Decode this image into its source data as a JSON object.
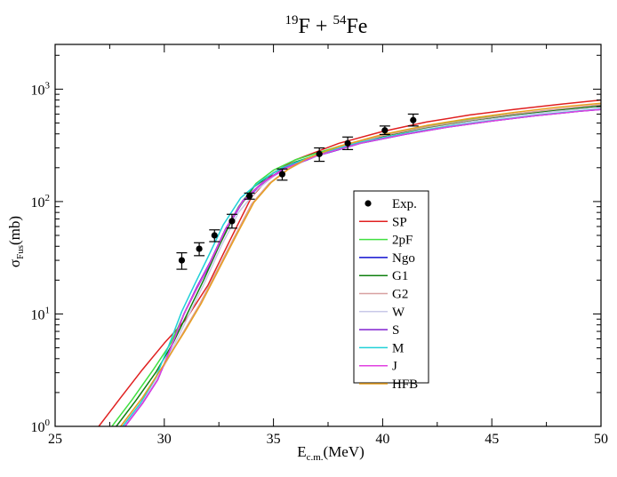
{
  "chart_data": {
    "type": "line",
    "title": {
      "m1": "19",
      "e1": "F + ",
      "m2": "54",
      "e2": "Fe"
    },
    "xlabel": {
      "main": "E",
      "sub": "c.m.",
      "unit": "(MeV)"
    },
    "ylabel": {
      "main": "σ",
      "sub": "Fus",
      "unit": "(mb)"
    },
    "xlim": [
      25,
      50
    ],
    "ylim": [
      1,
      2500
    ],
    "yscale": "log",
    "grid": false,
    "legend_position": "center-right",
    "x_ticks": [
      25,
      30,
      35,
      40,
      45,
      50
    ],
    "x_tick_labels": [
      "25",
      "30",
      "35",
      "40",
      "45",
      "50"
    ],
    "y_ticks": [
      1,
      10,
      100,
      1000
    ],
    "y_tick_labels": [
      {
        "base": "10",
        "exp": "0"
      },
      {
        "base": "10",
        "exp": "1"
      },
      {
        "base": "10",
        "exp": "2"
      },
      {
        "base": "10",
        "exp": "3"
      }
    ],
    "experiment": {
      "name": "Exp.",
      "x": [
        30.8,
        31.6,
        32.3,
        33.1,
        33.9,
        35.4,
        37.1,
        38.4,
        40.1,
        41.4
      ],
      "y": [
        30,
        38,
        50,
        67,
        112,
        175,
        265,
        330,
        430,
        530
      ],
      "err_low": [
        25,
        33,
        44,
        58,
        105,
        155,
        228,
        290,
        395,
        470
      ],
      "err_high": [
        35,
        43,
        56,
        77,
        119,
        195,
        300,
        375,
        470,
        600
      ]
    },
    "series": [
      {
        "name": "SP",
        "color": "#e02020",
        "x": [
          27.0,
          28.0,
          29.0,
          30.0,
          31.0,
          32.0,
          33.0,
          34.0,
          35.0,
          36.0,
          38.0,
          40.0,
          42.0,
          44.0,
          46.0,
          48.0,
          50.0
        ],
        "y": [
          1.0,
          1.8,
          3.2,
          5.5,
          9.0,
          18,
          45,
          110,
          180,
          235,
          330,
          420,
          510,
          590,
          660,
          730,
          800
        ]
      },
      {
        "name": "2pF",
        "color": "#40e040",
        "x": [
          27.6,
          28.5,
          29.5,
          30.3,
          31.0,
          31.8,
          32.6,
          33.4,
          34.2,
          35.0,
          36.0,
          38.0,
          40.0,
          42.0,
          44.0,
          46.0,
          48.0,
          50.0
        ],
        "y": [
          1.0,
          1.7,
          3.2,
          5.5,
          11,
          22,
          45,
          90,
          145,
          190,
          235,
          310,
          390,
          470,
          540,
          600,
          660,
          720
        ]
      },
      {
        "name": "Ngo",
        "color": "#1010d0",
        "x": [
          28.2,
          29.0,
          29.7,
          30.3,
          30.9,
          31.5,
          32.1,
          32.8,
          33.6,
          34.5,
          35.5,
          37.0,
          39.0,
          41.0,
          43.0,
          45.0,
          47.0,
          49.0,
          50.0
        ],
        "y": [
          1.0,
          1.6,
          2.6,
          5.0,
          10,
          17,
          28,
          55,
          100,
          145,
          195,
          255,
          330,
          395,
          460,
          520,
          580,
          635,
          660
        ]
      },
      {
        "name": "G1",
        "color": "#108010",
        "x": [
          27.8,
          28.7,
          29.6,
          30.4,
          31.1,
          31.8,
          32.5,
          33.3,
          34.1,
          35.0,
          36.0,
          38.0,
          40.0,
          42.0,
          44.0,
          46.0,
          48.0,
          50.0
        ],
        "y": [
          1.0,
          1.7,
          3.0,
          5.5,
          10.5,
          20,
          40,
          82,
          135,
          180,
          225,
          300,
          380,
          455,
          525,
          590,
          650,
          710
        ]
      },
      {
        "name": "G2",
        "color": "#d8a0a0",
        "x": [
          28.0,
          29.0,
          30.0,
          30.8,
          31.6,
          32.4,
          33.2,
          34.0,
          34.8,
          35.6,
          36.5,
          38.0,
          40.0,
          42.0,
          44.0,
          46.0,
          48.0,
          50.0
        ],
        "y": [
          1.0,
          1.8,
          3.5,
          6.5,
          12,
          24,
          48,
          95,
          145,
          190,
          235,
          300,
          385,
          460,
          530,
          600,
          665,
          730
        ]
      },
      {
        "name": "W",
        "color": "#c8c8e8",
        "x": [
          28.1,
          29.0,
          29.8,
          30.5,
          31.2,
          31.9,
          32.6,
          33.4,
          34.3,
          35.2,
          36.2,
          38.0,
          40.0,
          42.0,
          44.0,
          46.0,
          48.0,
          50.0
        ],
        "y": [
          1.0,
          1.7,
          3.0,
          5.5,
          10.5,
          20,
          40,
          80,
          130,
          180,
          225,
          295,
          370,
          440,
          510,
          575,
          635,
          690
        ]
      },
      {
        "name": "S",
        "color": "#8020d0",
        "x": [
          28.2,
          29.0,
          29.7,
          30.3,
          30.9,
          31.5,
          32.1,
          32.8,
          33.6,
          34.5,
          35.5,
          37.0,
          39.0,
          41.0,
          43.0,
          45.0,
          47.0,
          49.0,
          50.0
        ],
        "y": [
          1.0,
          1.6,
          2.6,
          5.0,
          10,
          17.5,
          29,
          57,
          102,
          148,
          198,
          258,
          333,
          398,
          462,
          522,
          582,
          637,
          662
        ]
      },
      {
        "name": "M",
        "color": "#20d0d8",
        "x": [
          28.1,
          28.9,
          29.6,
          30.2,
          30.8,
          31.4,
          32.0,
          32.7,
          33.5,
          34.4,
          35.4,
          37.0,
          39.0,
          41.0,
          43.0,
          45.0,
          47.0,
          49.0,
          50.0
        ],
        "y": [
          1.0,
          1.6,
          2.7,
          5.2,
          10.5,
          18.5,
          32,
          62,
          108,
          152,
          200,
          262,
          338,
          402,
          466,
          526,
          586,
          640,
          665
        ]
      },
      {
        "name": "J",
        "color": "#e040e0",
        "x": [
          28.2,
          29.0,
          29.7,
          30.3,
          30.9,
          31.5,
          32.1,
          32.8,
          33.6,
          34.5,
          35.5,
          37.0,
          39.0,
          41.0,
          43.0,
          45.0,
          47.0,
          49.0,
          50.0
        ],
        "y": [
          1.0,
          1.6,
          2.6,
          5.0,
          10,
          17,
          28.5,
          56,
          101,
          146,
          196,
          256,
          331,
          396,
          460,
          520,
          580,
          635,
          660
        ]
      },
      {
        "name": "HFB",
        "color": "#e8a020",
        "x": [
          28.0,
          29.0,
          30.0,
          30.9,
          31.7,
          32.5,
          33.3,
          34.1,
          34.9,
          35.7,
          36.5,
          38.0,
          40.0,
          42.0,
          44.0,
          46.0,
          48.0,
          50.0
        ],
        "y": [
          1.0,
          1.8,
          3.6,
          6.8,
          12.5,
          25,
          50,
          98,
          148,
          195,
          240,
          310,
          395,
          475,
          550,
          620,
          690,
          750
        ]
      }
    ]
  }
}
